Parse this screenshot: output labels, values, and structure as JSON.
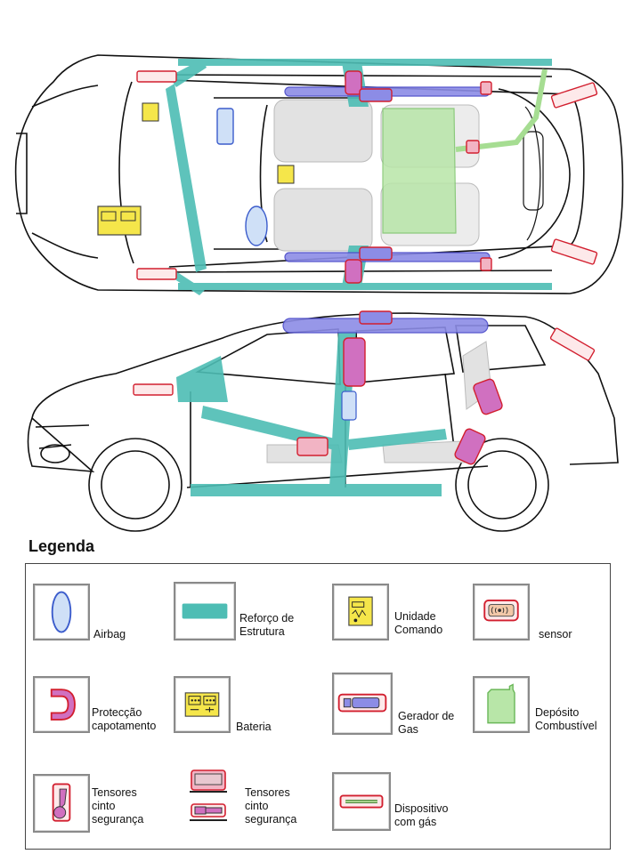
{
  "legend": {
    "title": "Legenda",
    "items": [
      {
        "key": "airbag",
        "label": "Airbag",
        "icon": "airbag-icon",
        "color": "#cfe0f7"
      },
      {
        "key": "reforco",
        "label": "Reforço de\nEstrutura",
        "icon": "structure-reinforcement-icon",
        "color": "#4dbdb4"
      },
      {
        "key": "unidade",
        "label": "Unidade\nComando",
        "icon": "control-unit-icon",
        "color": "#f5e64a"
      },
      {
        "key": "sensor",
        "label": "sensor",
        "icon": "sensor-icon",
        "color": "#e8a0a0"
      },
      {
        "key": "proteccao",
        "label": "Protecção\ncapotamento",
        "icon": "rollover-protection-icon",
        "color": "#d070c0"
      },
      {
        "key": "bateria",
        "label": "Bateria",
        "icon": "battery-icon",
        "color": "#f5e64a"
      },
      {
        "key": "gerador",
        "label": "Gerador de\nGas",
        "icon": "gas-generator-icon",
        "color": "#8c8ce6"
      },
      {
        "key": "deposito",
        "label": "Depósito\nCombustível",
        "icon": "fuel-tank-icon",
        "color": "#b8e6a8"
      },
      {
        "key": "tensores1",
        "label": "Tensores\ncinto\nsegurança",
        "icon": "seatbelt-tensioner-icon",
        "color": "#d070c0"
      },
      {
        "key": "tensores2",
        "label": "Tensores\ncinto\nsegurança",
        "icon": "seatbelt-tensioner-rail-icon",
        "color": "#d070c0"
      },
      {
        "key": "dispositivo",
        "label": "Dispositivo\ncom gás",
        "icon": "gas-strut-icon",
        "color": "#a6d28c"
      }
    ]
  }
}
